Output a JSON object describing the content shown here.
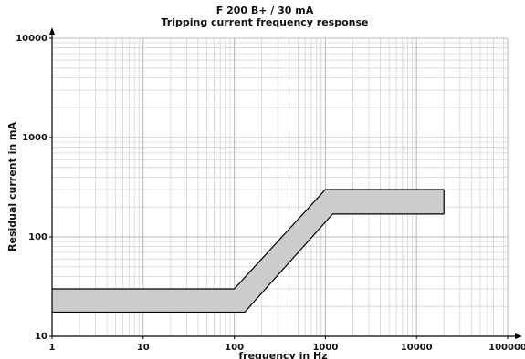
{
  "chart_data": {
    "type": "band",
    "title": "F 200 B+ / 30 mA",
    "subtitle": "Tripping current frequency response",
    "x_label": "frequency in Hz",
    "y_label": "Residual current in mA",
    "xscale": "log",
    "yscale": "log",
    "xlim": [
      1,
      100000
    ],
    "ylim": [
      10,
      10000
    ],
    "xticks": [
      1,
      10,
      100,
      1000,
      10000,
      100000
    ],
    "yticks": [
      10,
      100,
      1000,
      10000
    ],
    "grid": true,
    "fill": "#cccccc",
    "series": [
      {
        "color": "#000000",
        "x": [
          1,
          100,
          1000,
          20000
        ],
        "values": [
          30,
          30,
          300,
          300
        ]
      },
      {
        "color": "#000000",
        "x": [
          1,
          130,
          1200,
          20000
        ],
        "values": [
          17.5,
          17.5,
          170,
          170
        ]
      }
    ]
  }
}
